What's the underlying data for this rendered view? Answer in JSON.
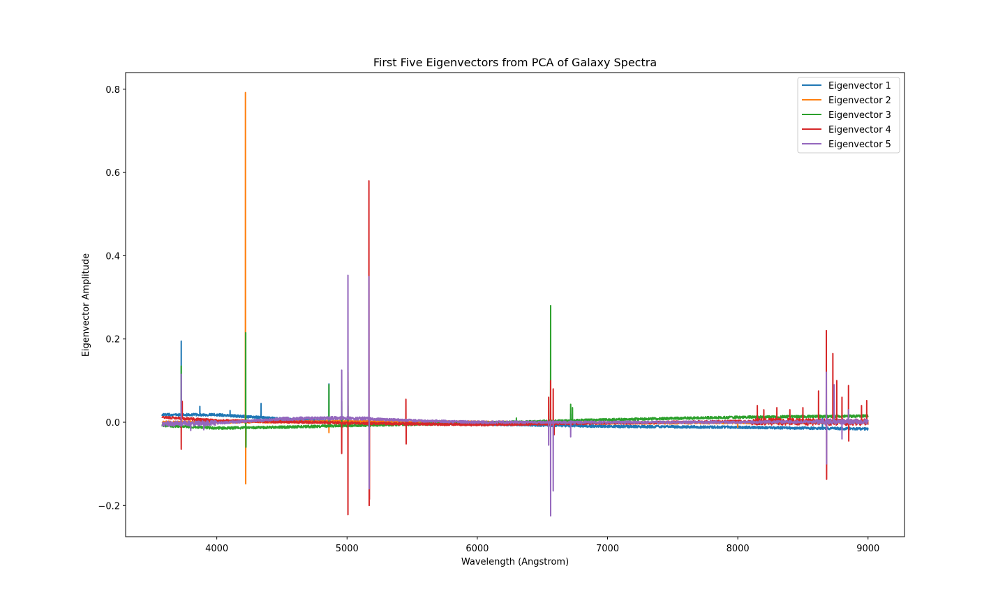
{
  "chart_data": {
    "type": "line",
    "title": "First Five Eigenvectors from PCA of Galaxy Spectra",
    "xlabel": "Wavelength (Angstrom)",
    "ylabel": "Eigenvector Amplitude",
    "xlim": [
      3300,
      9280
    ],
    "ylim": [
      -0.275,
      0.84
    ],
    "xticks": [
      4000,
      5000,
      6000,
      7000,
      8000,
      9000
    ],
    "yticks": [
      -0.2,
      0.0,
      0.2,
      0.4,
      0.6,
      0.8
    ],
    "ytick_labels": [
      "−0.2",
      "0.0",
      "0.2",
      "0.4",
      "0.6",
      "0.8"
    ],
    "grid": false,
    "legend_position": "top-right",
    "series": [
      {
        "name": "Eigenvector 1",
        "color": "#1f77b4",
        "baseline": [
          [
            3580,
            0.018
          ],
          [
            4000,
            0.018
          ],
          [
            4500,
            0.008
          ],
          [
            5000,
            0.0
          ],
          [
            6000,
            -0.004
          ],
          [
            7000,
            -0.01
          ],
          [
            8000,
            -0.012
          ],
          [
            9000,
            -0.016
          ]
        ],
        "spikes": [
          [
            3727,
            0.195
          ],
          [
            3870,
            0.038
          ],
          [
            4102,
            0.028
          ],
          [
            4340,
            0.045
          ],
          [
            4861,
            0.092
          ],
          [
            4959,
            0.02
          ],
          [
            5007,
            0.04
          ],
          [
            6563,
            0.03
          ],
          [
            6717,
            0.02
          ],
          [
            8650,
            0.01
          ]
        ]
      },
      {
        "name": "Eigenvector 2",
        "color": "#ff7f0e",
        "baseline": [
          [
            3580,
            0.0
          ],
          [
            5000,
            0.002
          ],
          [
            7000,
            -0.002
          ],
          [
            9000,
            0.0
          ]
        ],
        "spikes": [
          [
            4220,
            0.792
          ],
          [
            4222,
            -0.148
          ],
          [
            4861,
            -0.025
          ],
          [
            5007,
            0.12
          ],
          [
            8000,
            -0.012
          ]
        ]
      },
      {
        "name": "Eigenvector 3",
        "color": "#2ca02c",
        "baseline": [
          [
            3580,
            -0.008
          ],
          [
            4000,
            -0.014
          ],
          [
            4500,
            -0.012
          ],
          [
            5000,
            -0.008
          ],
          [
            6000,
            -0.002
          ],
          [
            7000,
            0.006
          ],
          [
            8000,
            0.012
          ],
          [
            9000,
            0.015
          ]
        ],
        "spikes": [
          [
            3727,
            0.135
          ],
          [
            4222,
            0.215
          ],
          [
            4224,
            -0.06
          ],
          [
            4861,
            0.09
          ],
          [
            4959,
            0.05
          ],
          [
            5007,
            0.1
          ],
          [
            6563,
            0.28
          ],
          [
            6717,
            0.043
          ],
          [
            6731,
            0.035
          ],
          [
            6300,
            0.01
          ]
        ]
      },
      {
        "name": "Eigenvector 4",
        "color": "#d62728",
        "baseline": [
          [
            3580,
            0.012
          ],
          [
            4000,
            0.004
          ],
          [
            5000,
            -0.002
          ],
          [
            6000,
            -0.006
          ],
          [
            7000,
            -0.002
          ],
          [
            8000,
            0.002
          ],
          [
            9000,
            0.0
          ]
        ],
        "spikes": [
          [
            3727,
            -0.065
          ],
          [
            3735,
            0.05
          ],
          [
            4959,
            -0.075
          ],
          [
            5007,
            -0.222
          ],
          [
            5168,
            0.58
          ],
          [
            5170,
            -0.2
          ],
          [
            5172,
            -0.185
          ],
          [
            5452,
            0.055
          ],
          [
            5454,
            -0.052
          ],
          [
            6548,
            0.06
          ],
          [
            6563,
            0.1
          ],
          [
            6583,
            0.08
          ],
          [
            6590,
            -0.03
          ],
          [
            8150,
            0.04
          ],
          [
            8200,
            0.03
          ],
          [
            8300,
            0.035
          ],
          [
            8400,
            0.03
          ],
          [
            8500,
            0.035
          ],
          [
            8620,
            0.075
          ],
          [
            8680,
            0.22
          ],
          [
            8682,
            -0.137
          ],
          [
            8730,
            0.165
          ],
          [
            8760,
            0.1
          ],
          [
            8800,
            0.06
          ],
          [
            8850,
            0.088
          ],
          [
            8852,
            -0.045
          ],
          [
            8950,
            0.04
          ],
          [
            8990,
            0.052
          ]
        ]
      },
      {
        "name": "Eigenvector 5",
        "color": "#9467bd",
        "baseline": [
          [
            3580,
            -0.004
          ],
          [
            4000,
            -0.002
          ],
          [
            4500,
            0.008
          ],
          [
            5000,
            0.01
          ],
          [
            5500,
            0.004
          ],
          [
            6000,
            0.0
          ],
          [
            7000,
            0.0
          ],
          [
            8000,
            0.0
          ],
          [
            9000,
            0.002
          ]
        ],
        "spikes": [
          [
            3727,
            0.115
          ],
          [
            3800,
            -0.02
          ],
          [
            3900,
            -0.018
          ],
          [
            4959,
            0.125
          ],
          [
            5007,
            0.353
          ],
          [
            5168,
            0.35
          ],
          [
            5170,
            -0.16
          ],
          [
            6548,
            -0.055
          ],
          [
            6563,
            -0.225
          ],
          [
            6583,
            -0.165
          ],
          [
            6717,
            -0.035
          ],
          [
            8680,
            0.12
          ],
          [
            8682,
            -0.1
          ],
          [
            8740,
            0.09
          ],
          [
            8800,
            -0.04
          ],
          [
            8850,
            0.03
          ]
        ]
      }
    ]
  }
}
